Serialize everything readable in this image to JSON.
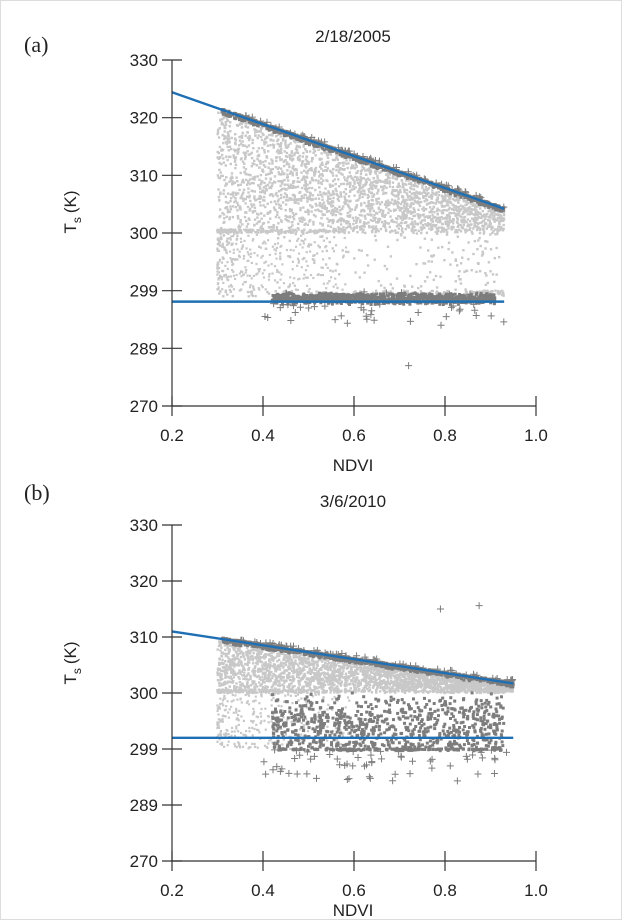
{
  "chart_data": [
    {
      "panel_label": "(a)",
      "title": "2/18/2005",
      "type": "scatter",
      "xlabel": "NDVI",
      "ylabel_main": "T",
      "ylabel_sub": "s",
      "ylabel_unit": "(K)",
      "x_ticks": [
        "0.2",
        "0.4",
        "0.6",
        "0.8",
        "1.0"
      ],
      "y_ticks": [
        "270",
        "289",
        "299",
        "300",
        "310",
        "320",
        "330"
      ],
      "xlim": [
        0.2,
        1.0
      ],
      "ndvi_range": [
        0.3,
        0.93
      ],
      "dry_edge": {
        "x": [
          0.2,
          0.93
        ],
        "y": [
          324.4,
          304.2
        ]
      },
      "wet_edge": {
        "x": [
          0.2,
          0.93
        ],
        "y": [
          297.1,
          297.1
        ]
      },
      "lower_band_top": 300.3,
      "outlier_min": 283.3,
      "colors": {
        "light": "#c8c8c8",
        "dark": "#7d7d7d",
        "line": "#1f6fb5"
      }
    },
    {
      "panel_label": "(b)",
      "title": "3/6/2010",
      "type": "scatter",
      "xlabel": "NDVI",
      "ylabel_main": "T",
      "ylabel_sub": "s",
      "ylabel_unit": "(K)",
      "x_ticks": [
        "0.2",
        "0.4",
        "0.6",
        "0.8",
        "1.0"
      ],
      "y_ticks": [
        "270",
        "289",
        "299",
        "300",
        "310",
        "320",
        "330"
      ],
      "xlim": [
        0.2,
        1.0
      ],
      "ndvi_range": [
        0.3,
        0.95
      ],
      "dry_edge": {
        "x": [
          0.2,
          0.95
        ],
        "y": [
          311.0,
          301.7
        ]
      },
      "wet_edge": {
        "x": [
          0.2,
          0.95
        ],
        "y": [
          299.2,
          299.2
        ]
      },
      "lower_band_top": 300.3,
      "outlier_max": 315.6,
      "colors": {
        "light": "#c8c8c8",
        "dark": "#7d7d7d",
        "line": "#1f6fb5"
      }
    }
  ]
}
